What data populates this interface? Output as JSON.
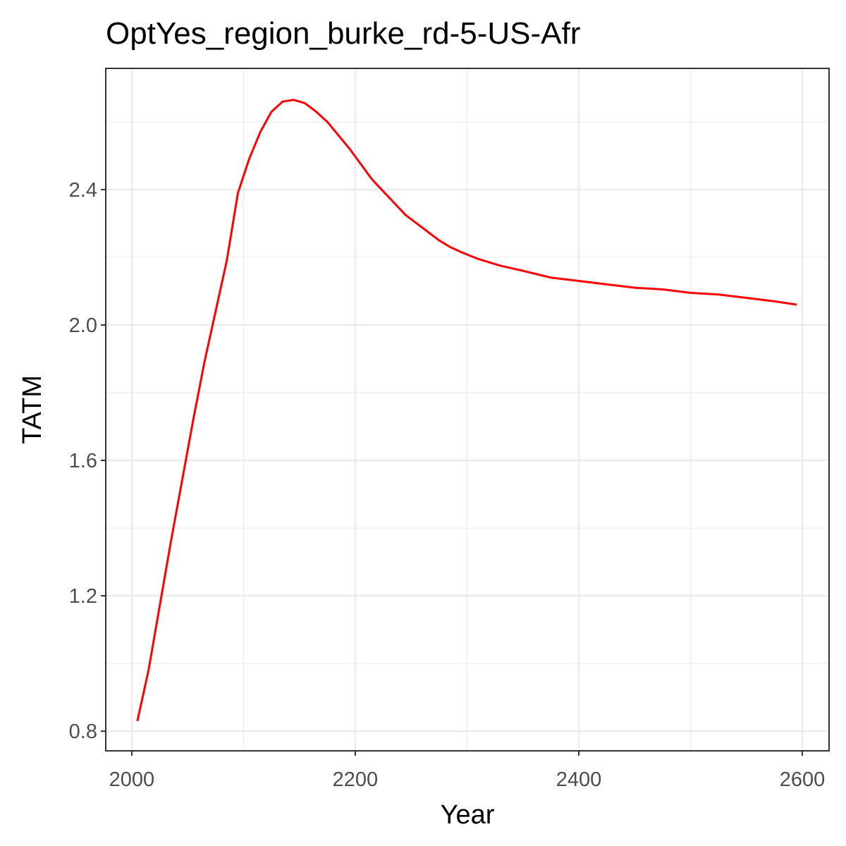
{
  "chart_data": {
    "type": "line",
    "title": "OptYes_region_burke_rd-5-US-Afr",
    "x_label": "Year",
    "y_label": "TATM",
    "x": [
      2005,
      2015,
      2025,
      2035,
      2045,
      2055,
      2065,
      2075,
      2085,
      2095,
      2105,
      2115,
      2125,
      2135,
      2145,
      2155,
      2165,
      2175,
      2185,
      2195,
      2205,
      2215,
      2225,
      2235,
      2245,
      2255,
      2265,
      2275,
      2285,
      2295,
      2310,
      2330,
      2350,
      2375,
      2400,
      2425,
      2450,
      2475,
      2500,
      2525,
      2550,
      2575,
      2595
    ],
    "series": [
      {
        "name": "TATM",
        "color": "#ff0000",
        "values": [
          0.83,
          0.98,
          1.17,
          1.36,
          1.54,
          1.72,
          1.89,
          2.04,
          2.19,
          2.39,
          2.49,
          2.57,
          2.63,
          2.66,
          2.665,
          2.655,
          2.63,
          2.6,
          2.56,
          2.52,
          2.475,
          2.43,
          2.395,
          2.36,
          2.325,
          2.3,
          2.275,
          2.25,
          2.23,
          2.215,
          2.195,
          2.175,
          2.16,
          2.14,
          2.13,
          2.12,
          2.11,
          2.105,
          2.095,
          2.09,
          2.08,
          2.07,
          2.06
        ]
      }
    ],
    "xlim": [
      1976.7,
      2624
    ],
    "xticks": [
      2000,
      2200,
      2400,
      2600
    ],
    "ylim": [
      0.742,
      2.758
    ],
    "yticks": [
      {
        "value": 0.8,
        "label": "0.8"
      },
      {
        "value": 1.2,
        "label": "1.2"
      },
      {
        "value": 1.6,
        "label": "1.6"
      },
      {
        "value": 2.0,
        "label": "2.0"
      },
      {
        "value": 2.4,
        "label": "2.4"
      }
    ],
    "grid": true,
    "minor_grid": true
  }
}
